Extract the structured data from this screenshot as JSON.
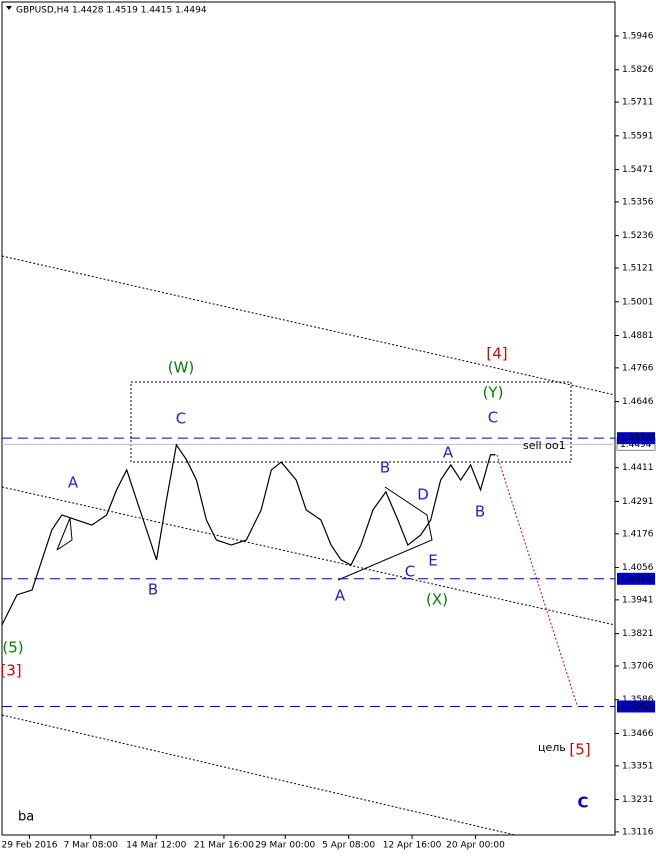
{
  "chart_data": {
    "type": "line",
    "title": "GBPUSD,H4  1.4428 1.4519 1.4415 1.4494",
    "series": [
      {
        "name": "GBPUSD",
        "color": "#000000",
        "x": [
          0,
          7.1,
          14.2,
          18.9,
          23.6,
          28.3,
          35.4,
          42.5,
          49.5,
          54.2,
          59,
          63.7,
          68.4,
          73.1,
          77.8,
          82.5,
          87.3,
          92,
          96.7,
          101.4,
          108.5,
          115.6,
          122.6,
          127.4,
          132.1,
          139.2,
          143.9,
          150.9,
          155.7,
          160.4,
          165.1,
          169.8,
          175.5,
          181.6,
          187.3,
          192,
          198.1,
          202.8,
          207.5,
          212.3,
          217,
          221.7,
          226.4,
          231.1,
          233.5
        ],
        "values": [
          1.3852,
          1.3959,
          1.3976,
          1.4083,
          1.419,
          1.4243,
          1.4225,
          1.4207,
          1.4243,
          1.4332,
          1.4403,
          1.4296,
          1.419,
          1.4083,
          1.4296,
          1.4492,
          1.4439,
          1.4367,
          1.4225,
          1.4154,
          1.4136,
          1.4154,
          1.4261,
          1.4403,
          1.4431,
          1.4367,
          1.4261,
          1.4225,
          1.4136,
          1.4083,
          1.4065,
          1.4136,
          1.4261,
          1.4325,
          1.4225,
          1.4136,
          1.4172,
          1.4225,
          1.4367,
          1.4421,
          1.4367,
          1.4421,
          1.4332,
          1.4457,
          1.4457
        ]
      }
    ],
    "xlim": [
      0,
      290
    ],
    "xticks": [
      {
        "value": 13,
        "label": "29 Feb 2016"
      },
      {
        "value": 42,
        "label": "7 Mar 08:00"
      },
      {
        "value": 73,
        "label": "14 Mar 12:00"
      },
      {
        "value": 105,
        "label": "21 Mar 16:00"
      },
      {
        "value": 134,
        "label": "29 Mar 00:00"
      },
      {
        "value": 164,
        "label": "5 Apr 08:00"
      },
      {
        "value": 194,
        "label": "12 Apr 16:00"
      },
      {
        "value": 224,
        "label": "20 Apr 00:00"
      }
    ],
    "ylim": [
      1.3105,
      1.6074
    ],
    "yticks": [
      1.5946,
      1.5826,
      1.5711,
      1.5591,
      1.5471,
      1.5356,
      1.5236,
      1.5121,
      1.5001,
      1.4881,
      1.4766,
      1.4646,
      1.4411,
      1.4291,
      1.4176,
      1.4056,
      1.3941,
      1.3821,
      1.3706,
      1.3586,
      1.3466,
      1.3351,
      1.3231,
      1.3116
    ],
    "levels": [
      {
        "value": 1.4516,
        "color": "#0000cc"
      },
      {
        "value": 1.4016,
        "color": "#0000cc"
      },
      {
        "value": 1.3562,
        "color": "#0000cc"
      }
    ],
    "last_price": 1.4494,
    "annotations": [
      {
        "text": "(5)",
        "color": "#008000"
      },
      {
        "text": "[3]",
        "color": "#dd0000"
      },
      {
        "text": "A",
        "color": "#2222cc"
      },
      {
        "text": "B",
        "color": "#2222cc"
      },
      {
        "text": "C",
        "color": "#2222cc"
      },
      {
        "text": "(W)",
        "color": "#008000"
      },
      {
        "text": "B",
        "color": "#2222cc"
      },
      {
        "text": "D",
        "color": "#2222cc"
      },
      {
        "text": "A",
        "color": "#2222cc"
      },
      {
        "text": "C",
        "color": "#2222cc"
      },
      {
        "text": "E",
        "color": "#2222cc"
      },
      {
        "text": "A",
        "color": "#2222cc"
      },
      {
        "text": "(X)",
        "color": "#008000"
      },
      {
        "text": "B",
        "color": "#2222cc"
      },
      {
        "text": "C",
        "color": "#2222cc"
      },
      {
        "text": "(Y)",
        "color": "#008000"
      },
      {
        "text": "[4]",
        "color": "#dd0000"
      },
      {
        "text": "sell oo1",
        "color": "#000000"
      },
      {
        "text": "цель",
        "color": "#000000"
      },
      {
        "text": "[5]",
        "color": "#dd0000"
      },
      {
        "text": "C",
        "color": "#0000cc"
      },
      {
        "text": "ba",
        "color": "#000000"
      }
    ]
  }
}
